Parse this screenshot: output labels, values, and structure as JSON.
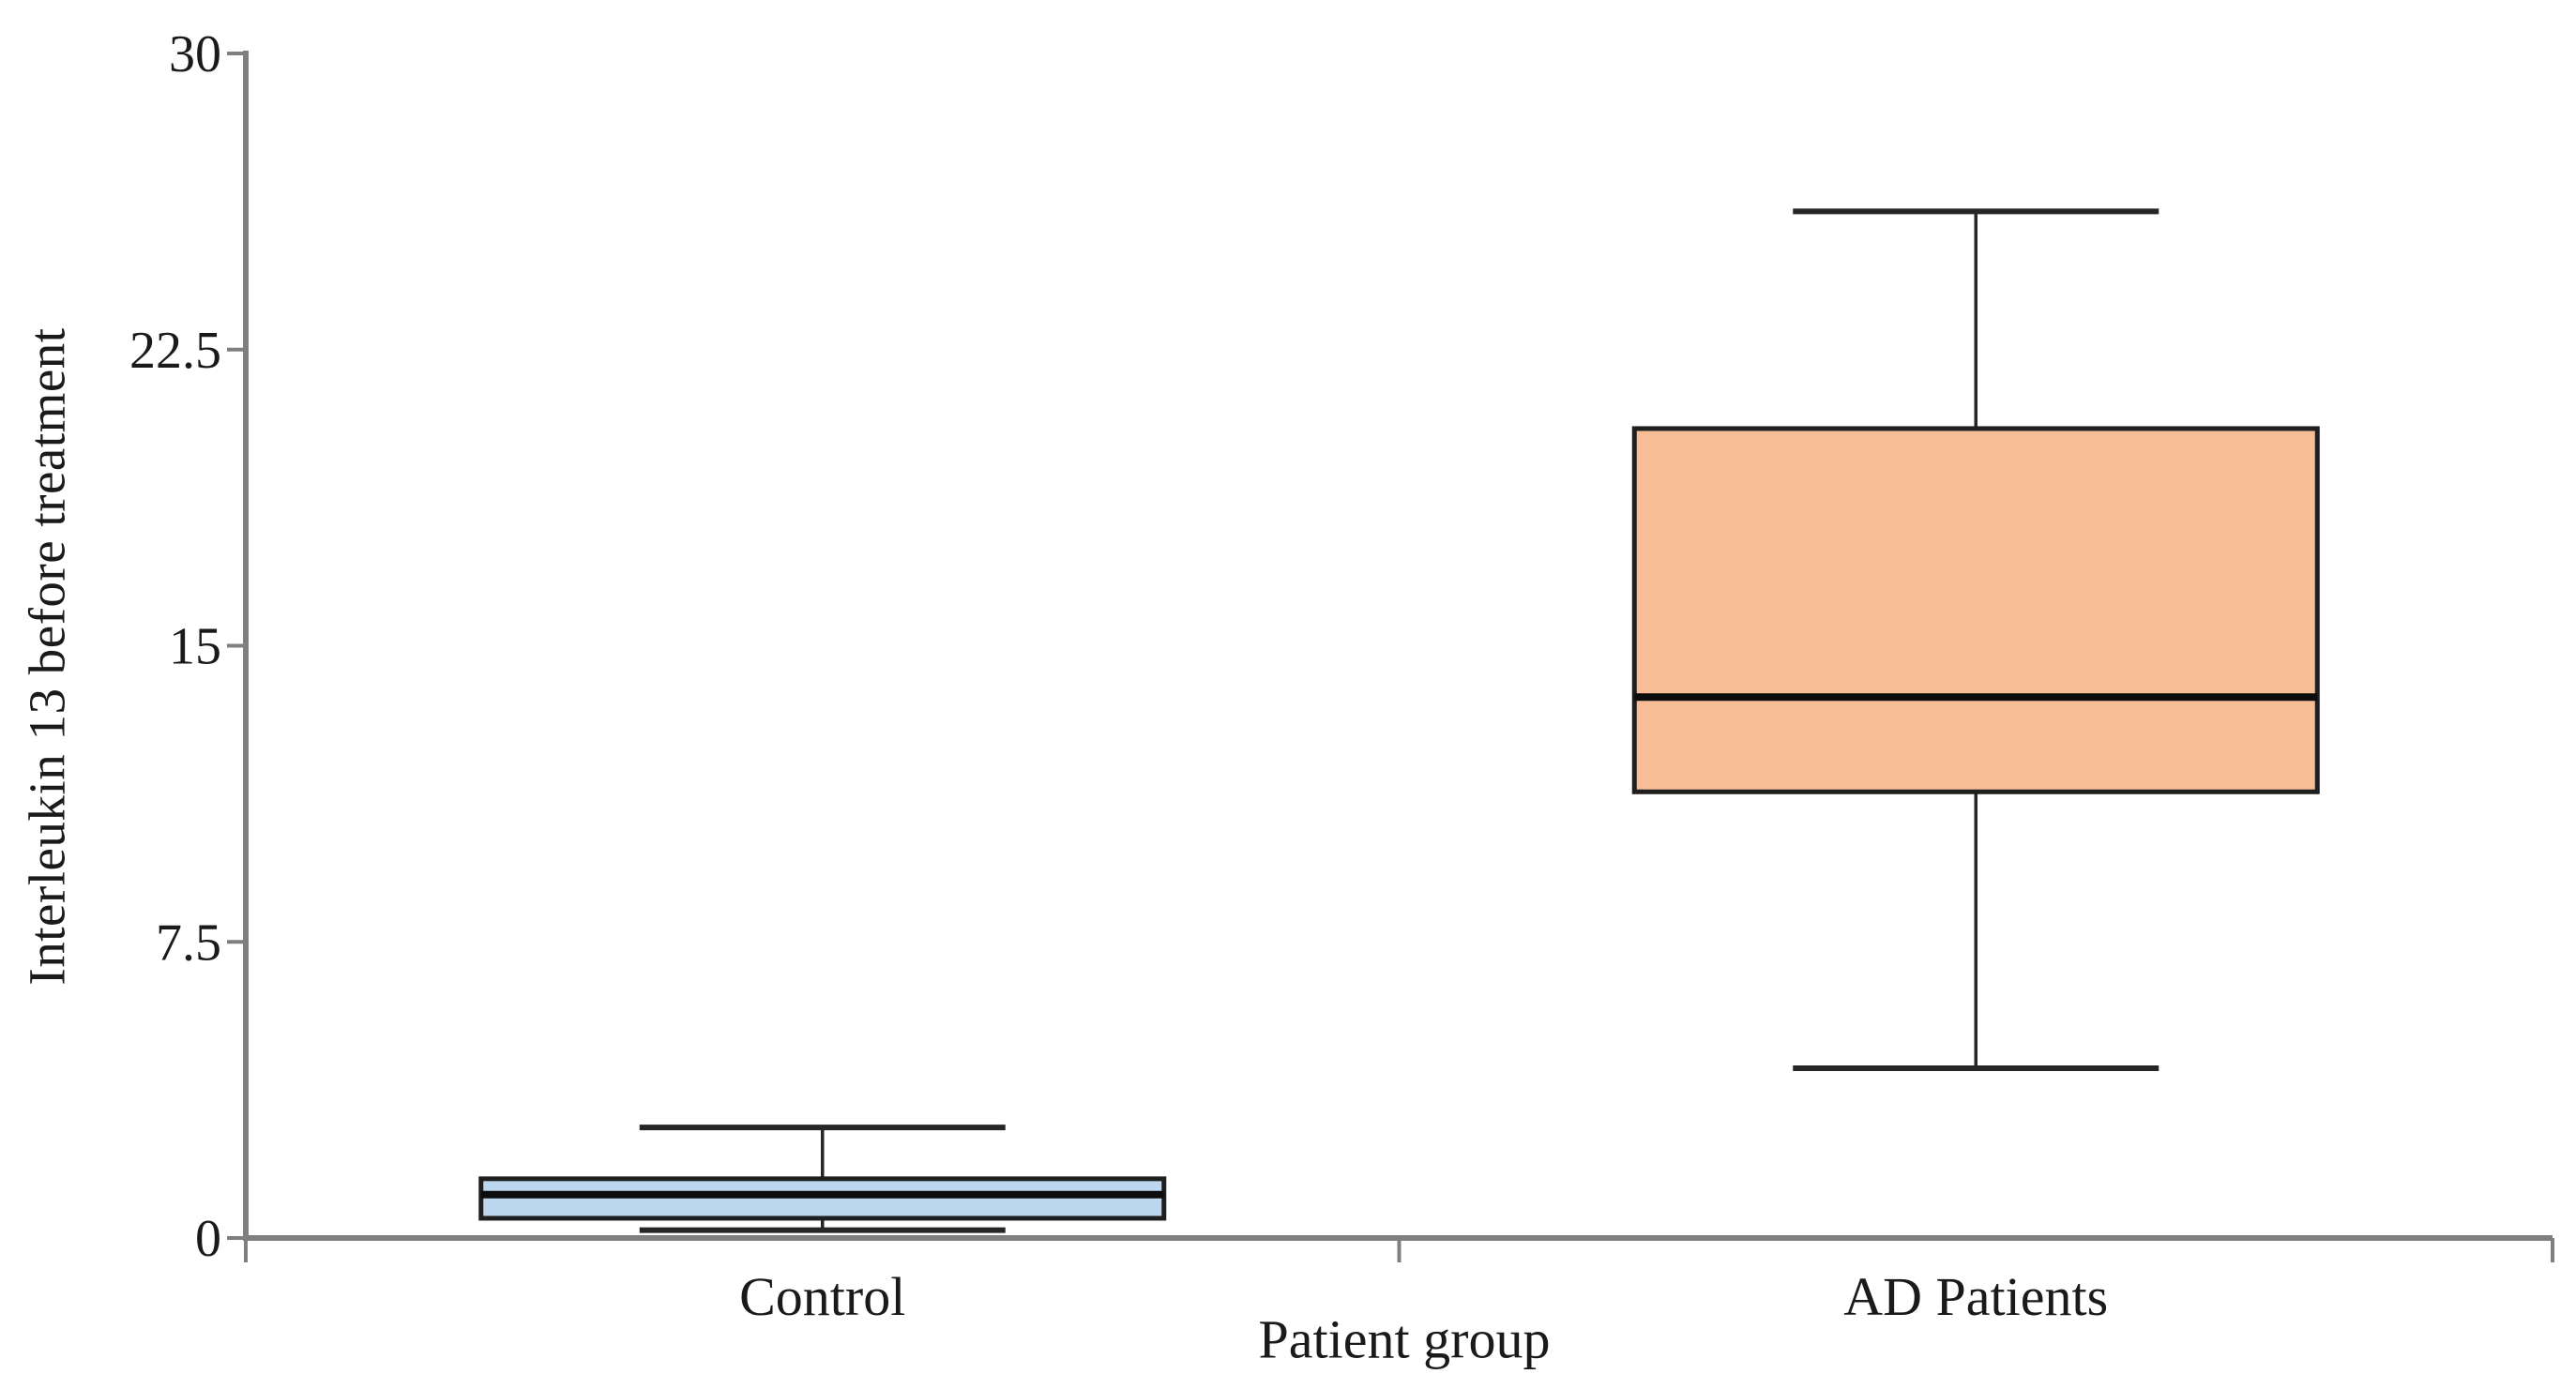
{
  "chart_data": {
    "type": "box",
    "title": "",
    "xlabel": "Patient group",
    "ylabel": "Interleukin 13 before treatment",
    "categories": [
      "Control",
      "AD Patients"
    ],
    "ylim": [
      0,
      30
    ],
    "y_ticks": [
      0,
      7.5,
      15,
      22.5,
      30
    ],
    "y_tick_labels": [
      "0",
      "7.5",
      "15",
      "22.5",
      "30"
    ],
    "grid": "off",
    "legend": "none",
    "series": [
      {
        "name": "Control",
        "min": 0.2,
        "q1": 0.5,
        "median": 1.1,
        "q3": 1.5,
        "max": 2.8,
        "fill": "#BDD7EE"
      },
      {
        "name": "AD Patients",
        "min": 4.3,
        "q1": 11.3,
        "median": 13.7,
        "q3": 20.5,
        "max": 26.0,
        "fill": "#F6BD96"
      }
    ],
    "colors": {
      "axis": "#7F7F7F",
      "box_border": "#1F1F1F",
      "whisker": "#262626",
      "median": "#0D0D0D",
      "text": "#1A1A1A"
    }
  }
}
